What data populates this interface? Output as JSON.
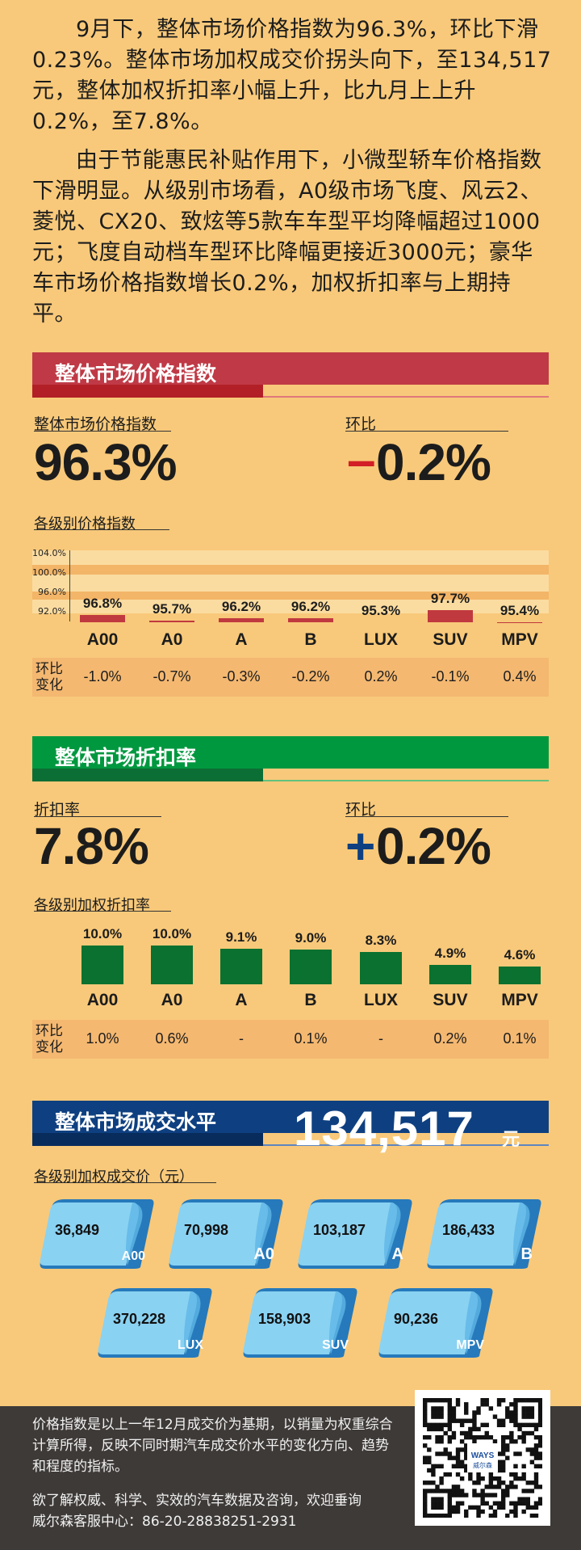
{
  "intro": {
    "p1": "9月下，整体市场价格指数为96.3%，环比下滑0.23%。整体市场加权成交价拐头向下，至134,517元，整体加权折扣率小幅上升，比九月上上升0.2%，至7.8%。",
    "p2": "由于节能惠民补贴作用下，小微型轿车价格指数下滑明显。从级别市场看，A0级市场飞度、风云2、菱悦、CX20、致炫等5款车车型平均降幅超过1000元；飞度自动档车型环比降幅更接近3000元；豪华车市场价格指数增长0.2%，加权折扣率与上期持平。"
  },
  "colors": {
    "bg": "#f8c97a",
    "red": "#c0393f",
    "green": "#00983f",
    "navy": "#0e4081",
    "bar_red": "#c0393f",
    "bar_green": "#0a7130",
    "card_light": "#8ad2f2",
    "card_dark": "#2679bb"
  },
  "section1": {
    "title": "整体市场价格指数",
    "label": "整体市场价格指数",
    "value": "96.3%",
    "mom_label": "环比",
    "mom_sign": "–",
    "mom_value": "0.2%",
    "chart_title": "各级别价格指数",
    "change_label": "环比变化",
    "y_ticks": [
      "104.0%",
      "100.0%",
      "96.0%",
      "92.0%"
    ]
  },
  "section2": {
    "title": "整体市场折扣率",
    "label": "折扣率",
    "value": "7.8%",
    "mom_label": "环比",
    "mom_sign": "+",
    "mom_value": "0.2%",
    "chart_title": "各级别加权折扣率",
    "change_label": "环比变化"
  },
  "section3": {
    "title": "整体市场成交水平",
    "value": "134,517",
    "unit": "元",
    "chart_title": "各级别加权成交价（元）"
  },
  "chart_data": [
    {
      "type": "bar",
      "categories": [
        "A00",
        "A0",
        "A",
        "B",
        "LUX",
        "SUV",
        "MPV"
      ],
      "values": [
        96.8,
        95.7,
        96.2,
        96.2,
        95.3,
        97.7,
        95.4
      ],
      "labels": [
        "96.8%",
        "95.7%",
        "96.2%",
        "96.2%",
        "95.3%",
        "97.7%",
        "95.4%"
      ],
      "changes": [
        "-1.0%",
        "-0.7%",
        "-0.3%",
        "-0.2%",
        "0.2%",
        "-0.1%",
        "0.4%"
      ],
      "title": "各级别价格指数",
      "ylim": [
        90,
        104
      ]
    },
    {
      "type": "bar",
      "categories": [
        "A00",
        "A0",
        "A",
        "B",
        "LUX",
        "SUV",
        "MPV"
      ],
      "values": [
        10.0,
        10.0,
        9.1,
        9.0,
        8.3,
        4.9,
        4.6
      ],
      "labels": [
        "10.0%",
        "10.0%",
        "9.1%",
        "9.0%",
        "8.3%",
        "4.9%",
        "4.6%"
      ],
      "changes": [
        "1.0%",
        "0.6%",
        "-",
        "0.1%",
        "-",
        "0.2%",
        "0.1%"
      ],
      "title": "各级别加权折扣率",
      "ylim": [
        0,
        10
      ]
    },
    {
      "type": "table",
      "categories": [
        "A00",
        "A0",
        "A",
        "B",
        "LUX",
        "SUV",
        "MPV"
      ],
      "values": [
        36849,
        70998,
        103187,
        186433,
        370228,
        158903,
        90236
      ],
      "labels": [
        "36,849",
        "70,998",
        "103,187",
        "186,433",
        "370,228",
        "158,903",
        "90,236"
      ],
      "title": "各级别加权成交价（元）"
    }
  ],
  "footer": {
    "note": "价格指数是以上一年12月成交价为基期，以销量为权重综合计算所得，反映不同时期汽车成交价水平的变化方向、趋势和程度的指标。",
    "contact_line1": "欲了解权威、科学、实效的汽车数据及咨询，欢迎垂询",
    "contact_line2": "威尔森客服中心：86-20-28838251-2931",
    "qr_brand": "WAYS",
    "qr_brand_cn": "威尔森"
  }
}
